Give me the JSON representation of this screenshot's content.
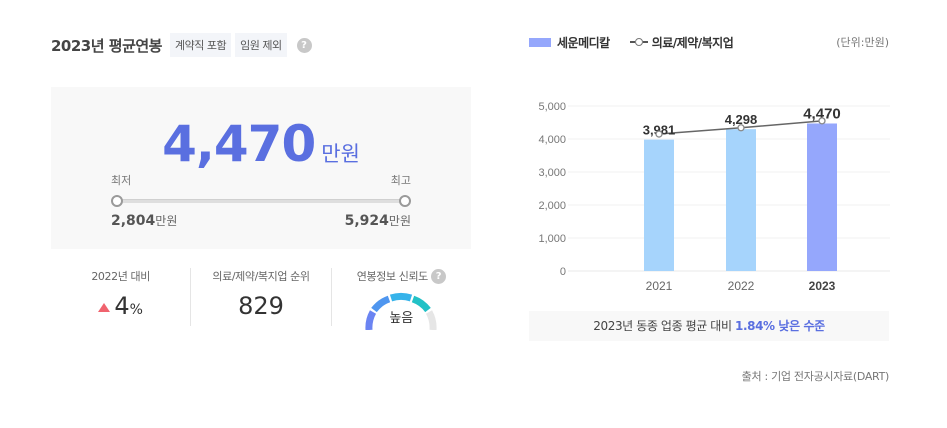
{
  "header": {
    "title": "2023년 평균연봉",
    "tags": [
      "계약직 포함",
      "임원 제외"
    ],
    "help_icon": "question-circle-icon"
  },
  "salary": {
    "average_value": "4,470",
    "average_unit": "만원",
    "min_label": "최저",
    "max_label": "최고",
    "min_value": "2,804",
    "max_value": "5,924",
    "value_unit": "만원"
  },
  "stats": [
    {
      "label": "2022년 대비",
      "value": "4",
      "suffix": "%",
      "trend": "up",
      "trend_color": "#f0636e"
    },
    {
      "label": "의료/제약/복지업 순위",
      "value": "829"
    },
    {
      "label": "연봉정보 신뢰도",
      "value": "높음",
      "help_icon": "question-circle-icon"
    }
  ],
  "legend": {
    "company": "세운메디칼",
    "industry": "의료/제약/복지업",
    "unit": "(단위:만원)"
  },
  "chart_data": {
    "type": "bar",
    "title": "",
    "xlabel": "",
    "ylabel": "",
    "unit": "만원",
    "categories": [
      "2021",
      "2022",
      "2023"
    ],
    "series": [
      {
        "name": "세운메디칼",
        "type": "bar",
        "values": [
          3981,
          4298,
          4470
        ],
        "colors": [
          "#a6d4fc",
          "#a6d4fc",
          "#95a7fc"
        ]
      },
      {
        "name": "의료/제약/복지업",
        "type": "line",
        "values": [
          4150,
          4340,
          4550
        ],
        "color": "#666666"
      }
    ],
    "data_labels": [
      "3,981",
      "4,298",
      "4,470"
    ],
    "yticks": [
      "0",
      "1,000",
      "2,000",
      "3,000",
      "4,000",
      "5,000"
    ],
    "ylim": [
      0,
      5000
    ],
    "grid": true,
    "highlight_category": "2023"
  },
  "comparison": {
    "prefix": "2023년 동종 업종 평균 대비 ",
    "highlight": "1.84% 낮은 수준"
  },
  "source": "출처 : 기업 전자공시자료(DART)"
}
